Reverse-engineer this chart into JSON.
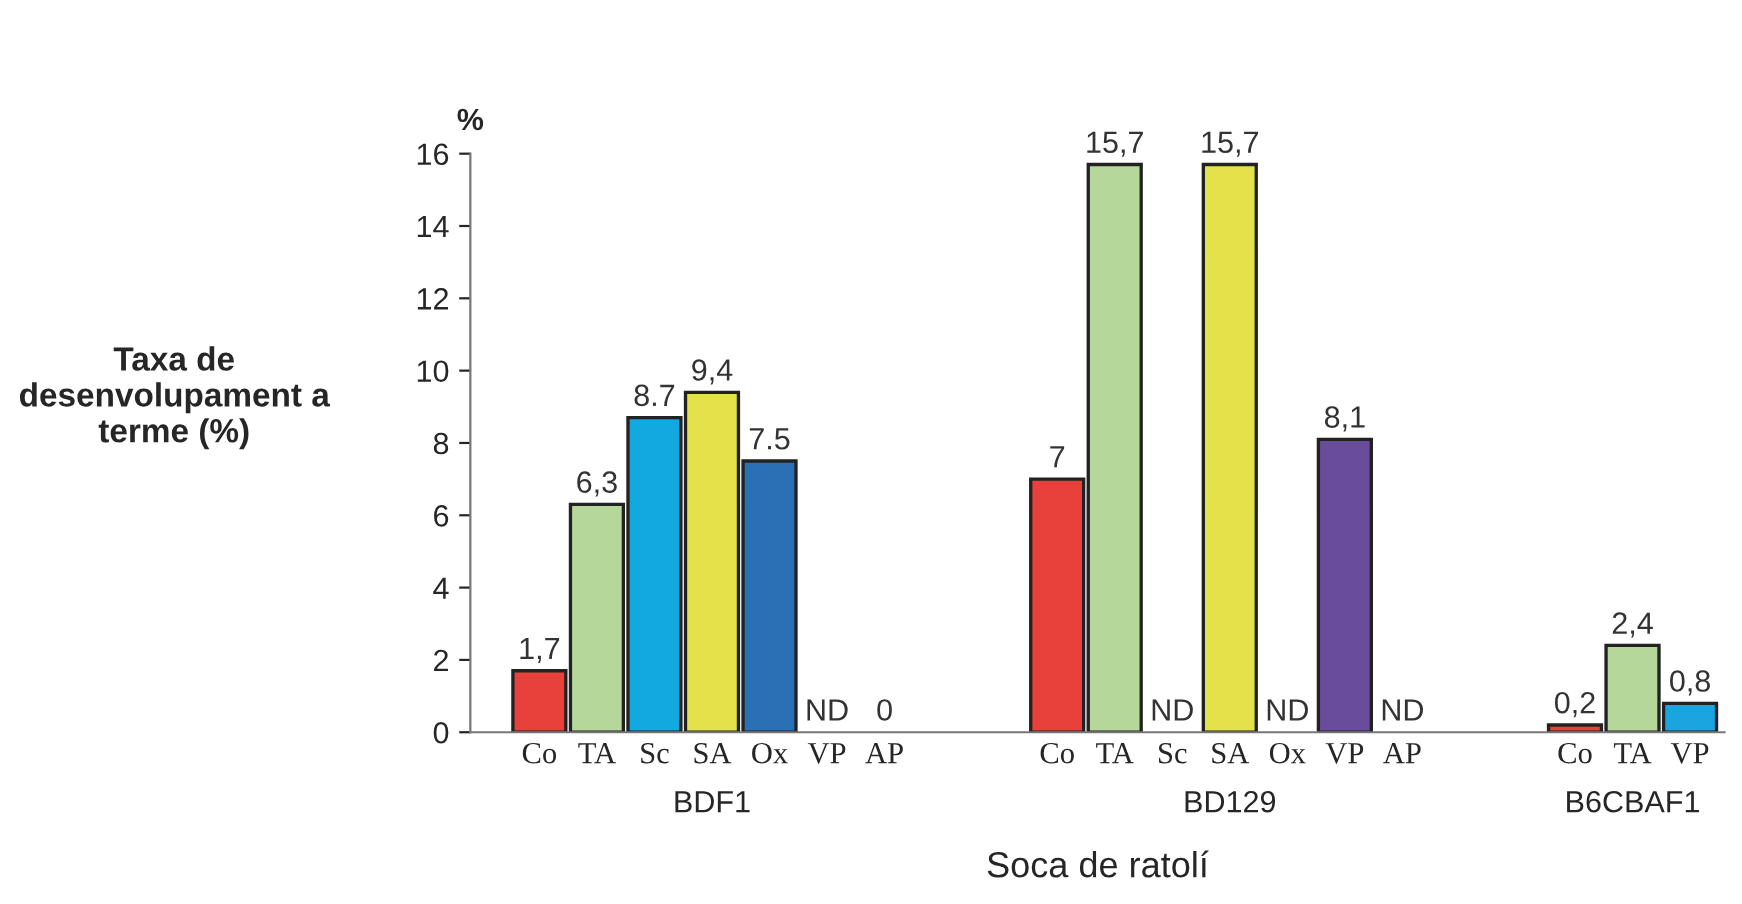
{
  "chart_data": {
    "type": "bar",
    "xlabel": "Soca de ratolí",
    "ylabel": "Taxa de desenvolupament a terme (%)",
    "annotations": [
      "%",
      "BDF1",
      "BD129",
      "B6CBAF1"
    ],
    "categories": [
      "Co",
      "TA",
      "Sc",
      "SA",
      "Ox",
      "VP",
      "AP",
      null,
      null,
      "Co",
      "TA",
      "Sc",
      "SA",
      "Ox",
      "VP",
      "AP",
      null,
      null,
      "Co",
      "TA",
      "VP"
    ],
    "values": [
      1.7,
      6.3,
      8.7,
      9.4,
      7.5,
      null,
      0,
      null,
      null,
      7,
      15.7,
      null,
      15.7,
      null,
      8.1,
      null,
      null,
      null,
      0.2,
      2.4,
      0.8
    ],
    "value_labels": [
      "1,7",
      "6,3",
      "8.7",
      "9,4",
      "7.5",
      "ND",
      "0",
      null,
      null,
      "7",
      "15,7",
      "ND",
      "15,7",
      "ND",
      "8,1",
      "ND",
      null,
      null,
      "0,2",
      "2,4",
      "0,8"
    ],
    "colors": [
      "#e8403a",
      "#b5d89a",
      "#12a9e0",
      "#e3e24a",
      "#2a70b5",
      "#ffffff",
      "#ffffff",
      "#ffffff",
      "#ffffff",
      "#e8403a",
      "#b5d89a",
      "#ffffff",
      "#e3e24a",
      "#ffffff",
      "#6a4c9c",
      "#ffffff",
      "#ffffff",
      "#ffffff",
      "#e8403a",
      "#b5d89a",
      "#1aa4e0"
    ],
    "ylim": [
      0,
      16
    ],
    "yticks": [
      0,
      2,
      4,
      6,
      8,
      10,
      12,
      14,
      16
    ],
    "grid": false,
    "legend": false
  }
}
